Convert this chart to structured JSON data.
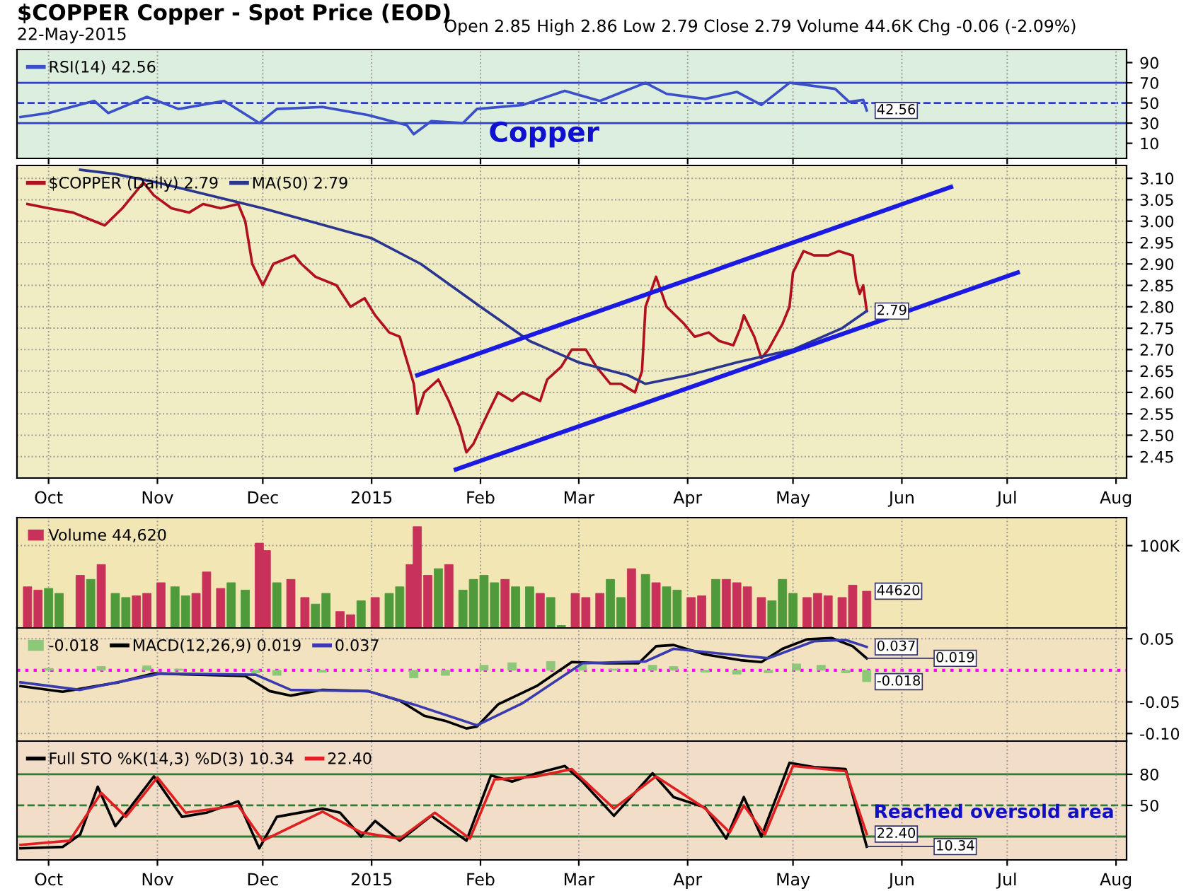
{
  "chart_data": [
    {
      "type": "line",
      "title": "$COPPER Copper - Spot Price (EOD)",
      "subtitle": "22-May-2015",
      "annotations": [
        "Open 2.85 High 2.86 Low 2.79 Close 2.79 Volume 44.6K Chg -0.06 (-2.09%)",
        "Copper",
        {
          "text": "42.56",
          "x": "2015-05-22",
          "y": 42.56
        }
      ],
      "grid": "x",
      "legend": "top left",
      "tick_labels": "y",
      "xlim": [
        "2014-09-22",
        "2015-08-04"
      ],
      "xticks": [
        {
          "value": "2014-10-01",
          "label": null
        },
        {
          "value": "2014-11-01",
          "label": null
        },
        {
          "value": "2014-12-01",
          "label": null
        },
        {
          "value": "2015-01-01",
          "label": null
        },
        {
          "value": "2015-02-01",
          "label": null
        },
        {
          "value": "2015-03-01",
          "label": null
        },
        {
          "value": "2015-04-01",
          "label": null
        },
        {
          "value": "2015-05-01",
          "label": null
        },
        {
          "value": "2015-06-01",
          "label": null
        },
        {
          "value": "2015-07-01",
          "label": null
        },
        {
          "value": "2015-08-01",
          "label": null
        }
      ],
      "ylim": [
        -5,
        103
      ],
      "yticks": [
        10,
        30,
        50,
        70,
        90
      ],
      "ref_lines": [
        {
          "axis": "y",
          "value": 70,
          "label": null,
          "color": "#3040c0",
          "line_style": "solid"
        },
        {
          "axis": "y",
          "value": 50,
          "label": null,
          "color": "#3040c0",
          "line_style": "dashed"
        },
        {
          "axis": "y",
          "value": 30,
          "label": null,
          "color": "#3040c0",
          "line_style": "solid"
        }
      ],
      "series": [
        {
          "name": "RSI(14) 42.56",
          "color": "#3a4fc8",
          "x": [
            "2014-09-23",
            "2014-10-01",
            "2014-10-14",
            "2014-10-18",
            "2014-10-29",
            "2014-11-07",
            "2014-11-20",
            "2014-11-30",
            "2014-12-05",
            "2014-12-18",
            "2014-12-31",
            "2015-01-11",
            "2015-01-13",
            "2015-01-18",
            "2015-01-27",
            "2015-01-31",
            "2015-02-13",
            "2015-02-25",
            "2015-03-07",
            "2015-03-20",
            "2015-03-26",
            "2015-04-06",
            "2015-04-15",
            "2015-04-22",
            "2015-04-30",
            "2015-05-13",
            "2015-05-17",
            "2015-05-21",
            "2015-05-22"
          ],
          "values": [
            36,
            40,
            52,
            40,
            56,
            44,
            52,
            30,
            44,
            46,
            38,
            28,
            19,
            32,
            30,
            44,
            48,
            62,
            52,
            70,
            59,
            54,
            61,
            48,
            70,
            64,
            51,
            53,
            42.56
          ]
        }
      ]
    },
    {
      "type": "line",
      "grid": true,
      "legend": "top left",
      "annotations": [
        {
          "text": "2.79",
          "x": "2015-05-22",
          "y": 2.79
        }
      ],
      "xlim": [
        "2014-09-22",
        "2015-08-04"
      ],
      "xticks": [
        {
          "value": "2014-10-01",
          "label": "Oct"
        },
        {
          "value": "2014-11-01",
          "label": "Nov"
        },
        {
          "value": "2014-12-01",
          "label": "Dec"
        },
        {
          "value": "2015-01-01",
          "label": "2015"
        },
        {
          "value": "2015-02-01",
          "label": "Feb"
        },
        {
          "value": "2015-03-01",
          "label": "Mar"
        },
        {
          "value": "2015-04-01",
          "label": "Apr"
        },
        {
          "value": "2015-05-01",
          "label": "May"
        },
        {
          "value": "2015-06-01",
          "label": "Jun"
        },
        {
          "value": "2015-07-01",
          "label": "Jul"
        },
        {
          "value": "2015-08-01",
          "label": "Aug"
        }
      ],
      "ylim": [
        2.4,
        3.13
      ],
      "yticks": [
        {
          "value": 2.45,
          "label": "2.45"
        },
        {
          "value": 2.5,
          "label": "2.50"
        },
        {
          "value": 2.55,
          "label": "2.55"
        },
        {
          "value": 2.6,
          "label": "2.60"
        },
        {
          "value": 2.65,
          "label": "2.65"
        },
        {
          "value": 2.7,
          "label": "2.70"
        },
        {
          "value": 2.75,
          "label": "2.75"
        },
        {
          "value": 2.8,
          "label": "2.80"
        },
        {
          "value": 2.85,
          "label": "2.85"
        },
        {
          "value": 2.9,
          "label": "2.90"
        },
        {
          "value": 2.95,
          "label": "2.95"
        },
        {
          "value": 3.0,
          "label": "3.00"
        },
        {
          "value": 3.05,
          "label": "3.05"
        },
        {
          "value": 3.1,
          "label": "3.10"
        }
      ],
      "series": [
        {
          "name": "$COPPER (Daily) 2.79",
          "color": "#b01020",
          "x": [
            "2014-09-25",
            "2014-10-01",
            "2014-10-08",
            "2014-10-14",
            "2014-10-17",
            "2014-10-22",
            "2014-10-28",
            "2014-10-31",
            "2014-11-05",
            "2014-11-10",
            "2014-11-14",
            "2014-11-19",
            "2014-11-24",
            "2014-11-26",
            "2014-11-28",
            "2014-12-01",
            "2014-12-04",
            "2014-12-10",
            "2014-12-12",
            "2014-12-16",
            "2014-12-22",
            "2014-12-26",
            "2014-12-30",
            "2015-01-02",
            "2015-01-06",
            "2015-01-09",
            "2015-01-13",
            "2015-01-14",
            "2015-01-16",
            "2015-01-20",
            "2015-01-23",
            "2015-01-26",
            "2015-01-28",
            "2015-01-30",
            "2015-02-03",
            "2015-02-06",
            "2015-02-10",
            "2015-02-13",
            "2015-02-18",
            "2015-02-20",
            "2015-02-24",
            "2015-02-27",
            "2015-03-03",
            "2015-03-06",
            "2015-03-10",
            "2015-03-13",
            "2015-03-17",
            "2015-03-19",
            "2015-03-20",
            "2015-03-23",
            "2015-03-26",
            "2015-03-31",
            "2015-04-03",
            "2015-04-07",
            "2015-04-10",
            "2015-04-14",
            "2015-04-16",
            "2015-04-17",
            "2015-04-20",
            "2015-04-22",
            "2015-04-24",
            "2015-04-28",
            "2015-04-30",
            "2015-05-01",
            "2015-05-04",
            "2015-05-07",
            "2015-05-11",
            "2015-05-14",
            "2015-05-18",
            "2015-05-19",
            "2015-05-20",
            "2015-05-21",
            "2015-05-22"
          ],
          "values": [
            3.04,
            3.03,
            3.02,
            3.0,
            2.99,
            3.03,
            3.09,
            3.06,
            3.03,
            3.02,
            3.04,
            3.03,
            3.04,
            3.0,
            2.9,
            2.85,
            2.9,
            2.92,
            2.9,
            2.87,
            2.85,
            2.8,
            2.82,
            2.78,
            2.74,
            2.73,
            2.62,
            2.55,
            2.6,
            2.63,
            2.58,
            2.52,
            2.46,
            2.48,
            2.55,
            2.6,
            2.58,
            2.6,
            2.58,
            2.63,
            2.66,
            2.7,
            2.7,
            2.66,
            2.62,
            2.62,
            2.6,
            2.65,
            2.8,
            2.87,
            2.8,
            2.76,
            2.73,
            2.74,
            2.72,
            2.71,
            2.75,
            2.78,
            2.73,
            2.68,
            2.7,
            2.76,
            2.8,
            2.88,
            2.93,
            2.92,
            2.92,
            2.93,
            2.92,
            2.86,
            2.83,
            2.85,
            2.79
          ]
        },
        {
          "name": "MA(50) 2.79",
          "color": "#2a3590",
          "x": [
            "2014-10-10",
            "2014-10-20",
            "2014-11-01",
            "2014-12-01",
            "2015-01-01",
            "2015-01-15",
            "2015-02-01",
            "2015-02-15",
            "2015-03-01",
            "2015-03-15",
            "2015-03-20",
            "2015-04-01",
            "2015-04-15",
            "2015-05-01",
            "2015-05-15",
            "2015-05-22"
          ],
          "values": [
            3.12,
            3.11,
            3.09,
            3.03,
            2.96,
            2.9,
            2.8,
            2.72,
            2.67,
            2.64,
            2.62,
            2.64,
            2.67,
            2.7,
            2.75,
            2.79
          ]
        },
        {
          "color": "#1a1ae0",
          "x": [
            "2015-01-14",
            "2015-06-15"
          ],
          "values": [
            2.64,
            3.08
          ]
        },
        {
          "color": "#1a1ae0",
          "x": [
            "2015-01-25",
            "2015-07-04"
          ],
          "values": [
            2.42,
            2.88
          ]
        }
      ]
    },
    {
      "type": "bar",
      "grid": true,
      "legend": "top left",
      "tick_labels": "y",
      "annotations": [
        {
          "text": "44620",
          "x": "2015-05-22",
          "y": 44620
        }
      ],
      "xlim": [
        "2014-09-22",
        "2015-08-04"
      ],
      "xticks": [
        {
          "value": "2014-10-01",
          "label": null
        },
        {
          "value": "2014-11-01",
          "label": null
        },
        {
          "value": "2014-12-01",
          "label": null
        },
        {
          "value": "2015-01-01",
          "label": null
        },
        {
          "value": "2015-02-01",
          "label": null
        },
        {
          "value": "2015-03-01",
          "label": null
        },
        {
          "value": "2015-04-01",
          "label": null
        },
        {
          "value": "2015-05-01",
          "label": null
        },
        {
          "value": "2015-06-01",
          "label": null
        },
        {
          "value": "2015-07-01",
          "label": null
        },
        {
          "value": "2015-08-01",
          "label": null
        }
      ],
      "ylim": [
        0,
        134000
      ],
      "yticks": [
        {
          "value": 100000,
          "label": "100K"
        }
      ],
      "series": [
        {
          "name": "Volume 44,620",
          "color": "#c8325a",
          "x": [
            "2014-09-25",
            "2014-09-28",
            "2014-10-01",
            "2014-10-04",
            "2014-10-10",
            "2014-10-13",
            "2014-10-16",
            "2014-10-20",
            "2014-10-23",
            "2014-10-26",
            "2014-10-29",
            "2014-11-02",
            "2014-11-06",
            "2014-11-09",
            "2014-11-12",
            "2014-11-15",
            "2014-11-19",
            "2014-11-22",
            "2014-11-26",
            "2014-11-30",
            "2014-12-02",
            "2014-12-05",
            "2014-12-09",
            "2014-12-13",
            "2014-12-16",
            "2014-12-19",
            "2014-12-23",
            "2014-12-26",
            "2014-12-29",
            "2015-01-02",
            "2015-01-06",
            "2015-01-09",
            "2015-01-12",
            "2015-01-14",
            "2015-01-17",
            "2015-01-20",
            "2015-01-23",
            "2015-01-27",
            "2015-01-30",
            "2015-02-02",
            "2015-02-05",
            "2015-02-08",
            "2015-02-11",
            "2015-02-15",
            "2015-02-18",
            "2015-02-21",
            "2015-02-24",
            "2015-02-28",
            "2015-03-03",
            "2015-03-07",
            "2015-03-10",
            "2015-03-13",
            "2015-03-16",
            "2015-03-20",
            "2015-03-23",
            "2015-03-26",
            "2015-03-29",
            "2015-04-02",
            "2015-04-05",
            "2015-04-09",
            "2015-04-12",
            "2015-04-15",
            "2015-04-18",
            "2015-04-22",
            "2015-04-25",
            "2015-04-28",
            "2015-05-01",
            "2015-05-05",
            "2015-05-08",
            "2015-05-11",
            "2015-05-15",
            "2015-05-18",
            "2015-05-22"
          ],
          "values": [
            50000,
            46000,
            48000,
            42000,
            64000,
            59000,
            77000,
            42000,
            37000,
            39000,
            42000,
            55000,
            50000,
            39000,
            42000,
            68000,
            48000,
            55000,
            46000,
            103000,
            94000,
            55000,
            59000,
            37000,
            29000,
            42000,
            20000,
            16000,
            33000,
            37000,
            42000,
            50000,
            77000,
            123000,
            64000,
            72000,
            77000,
            46000,
            59000,
            64000,
            55000,
            59000,
            50000,
            50000,
            42000,
            37000,
            3000,
            42000,
            37000,
            42000,
            59000,
            37000,
            72000,
            65000,
            55000,
            50000,
            46000,
            37000,
            39000,
            59000,
            59000,
            55000,
            50000,
            37000,
            33000,
            59000,
            42000,
            37000,
            42000,
            39000,
            37000,
            52000,
            44620
          ],
          "colors": [
            "#c8325a",
            "#c8325a",
            "#4f9a3a",
            "#4f9a3a",
            "#c8325a",
            "#4f9a3a",
            "#c8325a",
            "#4f9a3a",
            "#4f9a3a",
            "#c8325a",
            "#c8325a",
            "#c8325a",
            "#4f9a3a",
            "#4f9a3a",
            "#c8325a",
            "#c8325a",
            "#c8325a",
            "#4f9a3a",
            "#4f9a3a",
            "#c8325a",
            "#c8325a",
            "#4f9a3a",
            "#c8325a",
            "#c8325a",
            "#4f9a3a",
            "#4f9a3a",
            "#c8325a",
            "#c8325a",
            "#4f9a3a",
            "#c8325a",
            "#4f9a3a",
            "#4f9a3a",
            "#c8325a",
            "#c8325a",
            "#c8325a",
            "#4f9a3a",
            "#c8325a",
            "#4f9a3a",
            "#4f9a3a",
            "#4f9a3a",
            "#4f9a3a",
            "#c8325a",
            "#4f9a3a",
            "#4f9a3a",
            "#c8325a",
            "#4f9a3a",
            "#4f9a3a",
            "#c8325a",
            "#c8325a",
            "#c8325a",
            "#4f9a3a",
            "#4f9a3a",
            "#c8325a",
            "#4f9a3a",
            "#c8325a",
            "#4f9a3a",
            "#4f9a3a",
            "#c8325a",
            "#c8325a",
            "#4f9a3a",
            "#c8325a",
            "#c8325a",
            "#c8325a",
            "#c8325a",
            "#4f9a3a",
            "#4f9a3a",
            "#4f9a3a",
            "#c8325a",
            "#c8325a",
            "#c8325a",
            "#c8325a",
            "#c8325a",
            "#c8325a"
          ]
        }
      ]
    },
    {
      "type": "line",
      "grid": true,
      "legend": "top left",
      "tick_labels": "y",
      "annotations": [
        {
          "text": "0.037",
          "x": "2015-05-22",
          "y": 0.037
        },
        {
          "text": "0.019",
          "x": "2015-05-22",
          "y": 0.019
        },
        {
          "text": "-0.018",
          "x": "2015-05-22",
          "y": -0.018
        }
      ],
      "xlim": [
        "2014-09-22",
        "2015-08-04"
      ],
      "xticks": [
        {
          "value": "2014-10-01",
          "label": null
        },
        {
          "value": "2014-11-01",
          "label": null
        },
        {
          "value": "2014-12-01",
          "label": null
        },
        {
          "value": "2015-01-01",
          "label": null
        },
        {
          "value": "2015-02-01",
          "label": null
        },
        {
          "value": "2015-03-01",
          "label": null
        },
        {
          "value": "2015-04-01",
          "label": null
        },
        {
          "value": "2015-05-01",
          "label": null
        },
        {
          "value": "2015-06-01",
          "label": null
        },
        {
          "value": "2015-07-01",
          "label": null
        },
        {
          "value": "2015-08-01",
          "label": null
        }
      ],
      "ylim": [
        -0.112,
        0.067
      ],
      "yticks": [
        0.05,
        {
          "value": -0.05,
          "label": "-0.05"
        },
        {
          "value": -0.1,
          "label": "-0.10"
        }
      ],
      "ref_lines": [
        {
          "axis": "y",
          "value": 0,
          "label": null,
          "color": "#ff00ff",
          "line_style": "dotted"
        }
      ],
      "series": [
        {
          "name": "-0.018",
          "type": "bar",
          "color": "#8cc878",
          "x": [
            "2014-10-01",
            "2014-10-16",
            "2014-10-29",
            "2014-11-07",
            "2014-11-29",
            "2014-12-05",
            "2014-12-18",
            "2014-12-31",
            "2015-01-13",
            "2015-01-22",
            "2015-02-02",
            "2015-02-10",
            "2015-02-21",
            "2015-03-02",
            "2015-03-11",
            "2015-03-22",
            "2015-03-28",
            "2015-04-06",
            "2015-04-15",
            "2015-04-24",
            "2015-05-02",
            "2015-05-09",
            "2015-05-16",
            "2015-05-22"
          ],
          "values": [
            0.003,
            0.006,
            0.007,
            0.002,
            -0.004,
            -0.008,
            -0.003,
            0,
            -0.012,
            -0.008,
            0.008,
            0.012,
            0.014,
            0.008,
            0.002,
            0.008,
            0.006,
            -0.003,
            -0.006,
            -0.004,
            0.01,
            0.008,
            -0.004,
            -0.018
          ]
        },
        {
          "name": "MACD(12,26,9) 0.019",
          "color": "#000000",
          "x": [
            "2014-09-23",
            "2014-10-05",
            "2014-10-21",
            "2014-10-31",
            "2014-11-13",
            "2014-11-26",
            "2014-12-03",
            "2014-12-09",
            "2014-12-18",
            "2014-12-31",
            "2015-01-09",
            "2015-01-16",
            "2015-01-22",
            "2015-01-28",
            "2015-01-31",
            "2015-02-06",
            "2015-02-17",
            "2015-02-27",
            "2015-03-09",
            "2015-03-18",
            "2015-03-23",
            "2015-03-28",
            "2015-04-06",
            "2015-04-16",
            "2015-04-22",
            "2015-04-28",
            "2015-05-05",
            "2015-05-12",
            "2015-05-18",
            "2015-05-22"
          ],
          "values": [
            -0.025,
            -0.034,
            -0.019,
            -0.005,
            -0.007,
            -0.009,
            -0.033,
            -0.04,
            -0.031,
            -0.033,
            -0.048,
            -0.072,
            -0.08,
            -0.092,
            -0.089,
            -0.054,
            -0.025,
            0.013,
            0.011,
            0.011,
            0.038,
            0.04,
            0.025,
            0.016,
            0.013,
            0.034,
            0.049,
            0.051,
            0.038,
            0.019
          ]
        },
        {
          "name": "0.037",
          "color": "#3a3ab0",
          "x": [
            "2014-09-23",
            "2014-10-10",
            "2014-11-02",
            "2014-11-29",
            "2014-12-09",
            "2014-12-31",
            "2015-01-13",
            "2015-01-31",
            "2015-02-13",
            "2015-03-02",
            "2015-03-20",
            "2015-03-28",
            "2015-04-13",
            "2015-04-24",
            "2015-05-07",
            "2015-05-16",
            "2015-05-22"
          ],
          "values": [
            -0.019,
            -0.031,
            -0.005,
            -0.007,
            -0.031,
            -0.033,
            -0.054,
            -0.087,
            -0.052,
            0.011,
            0.014,
            0.034,
            0.025,
            0.019,
            0.046,
            0.048,
            0.037
          ]
        }
      ]
    },
    {
      "type": "line",
      "grid": "x",
      "legend": "top left",
      "annotations": [
        "Reached oversold area",
        {
          "text": "22.40",
          "x": "2015-05-22",
          "y": 22.4
        },
        {
          "text": "10.34",
          "x": "2015-05-22",
          "y": 10.34
        }
      ],
      "xlim": [
        "2014-09-22",
        "2015-08-04"
      ],
      "xticks": [
        {
          "value": "2014-10-01",
          "label": "Oct"
        },
        {
          "value": "2014-11-01",
          "label": "Nov"
        },
        {
          "value": "2014-12-01",
          "label": "Dec"
        },
        {
          "value": "2015-01-01",
          "label": "2015"
        },
        {
          "value": "2015-02-01",
          "label": "Feb"
        },
        {
          "value": "2015-03-01",
          "label": "Mar"
        },
        {
          "value": "2015-04-01",
          "label": "Apr"
        },
        {
          "value": "2015-05-01",
          "label": "May"
        },
        {
          "value": "2015-06-01",
          "label": "Jun"
        },
        {
          "value": "2015-07-01",
          "label": "Jul"
        },
        {
          "value": "2015-08-01",
          "label": "Aug"
        }
      ],
      "ylim": [
        -2.5,
        112
      ],
      "yticks": [
        50,
        80
      ],
      "ref_lines": [
        {
          "axis": "y",
          "value": 80,
          "label": null,
          "color": "#2e7d32",
          "line_style": "solid"
        },
        {
          "axis": "y",
          "value": 50,
          "label": null,
          "color": "#2e7d32",
          "line_style": "dashed"
        },
        {
          "axis": "y",
          "value": 20,
          "label": null,
          "color": "#2e7d32",
          "line_style": "solid"
        }
      ],
      "series": [
        {
          "name": "Full STO %K(14,3) %D(3) 10.34",
          "color": "#000000",
          "x": [
            "2014-09-23",
            "2014-10-05",
            "2014-10-10",
            "2014-10-15",
            "2014-10-20",
            "2014-10-24",
            "2014-10-31",
            "2014-11-08",
            "2014-11-15",
            "2014-11-24",
            "2014-11-30",
            "2014-12-05",
            "2014-12-18",
            "2014-12-23",
            "2014-12-29",
            "2015-01-02",
            "2015-01-09",
            "2015-01-18",
            "2015-01-28",
            "2015-02-04",
            "2015-02-10",
            "2015-02-17",
            "2015-02-25",
            "2015-03-02",
            "2015-03-11",
            "2015-03-22",
            "2015-03-28",
            "2015-04-06",
            "2015-04-12",
            "2015-04-17",
            "2015-04-22",
            "2015-04-30",
            "2015-05-07",
            "2015-05-16",
            "2015-05-22"
          ],
          "values": [
            8.6,
            10,
            22,
            68,
            30,
            47,
            78,
            39,
            43,
            54,
            8.6,
            39,
            47,
            43,
            20,
            35,
            16,
            40,
            16,
            79,
            73,
            81,
            88,
            73,
            40,
            81,
            58,
            48,
            18,
            58,
            20,
            91,
            87,
            85,
            10.34
          ]
        },
        {
          "name": "22.40",
          "color": "#e02020",
          "x": [
            "2014-09-23",
            "2014-10-07",
            "2014-10-16",
            "2014-10-23",
            "2014-11-01",
            "2014-11-09",
            "2014-11-24",
            "2014-12-01",
            "2014-12-18",
            "2014-12-29",
            "2015-01-09",
            "2015-01-19",
            "2015-01-29",
            "2015-02-05",
            "2015-02-17",
            "2015-02-27",
            "2015-03-11",
            "2015-03-23",
            "2015-04-06",
            "2015-04-13",
            "2015-04-17",
            "2015-04-23",
            "2015-05-01",
            "2015-05-16",
            "2015-05-22"
          ],
          "values": [
            12,
            16,
            62,
            39,
            77,
            43,
            50,
            16,
            44,
            24,
            18,
            43,
            18,
            75,
            78,
            85,
            47,
            78,
            47,
            24,
            50,
            22,
            88,
            83,
            22.4
          ]
        }
      ]
    }
  ]
}
